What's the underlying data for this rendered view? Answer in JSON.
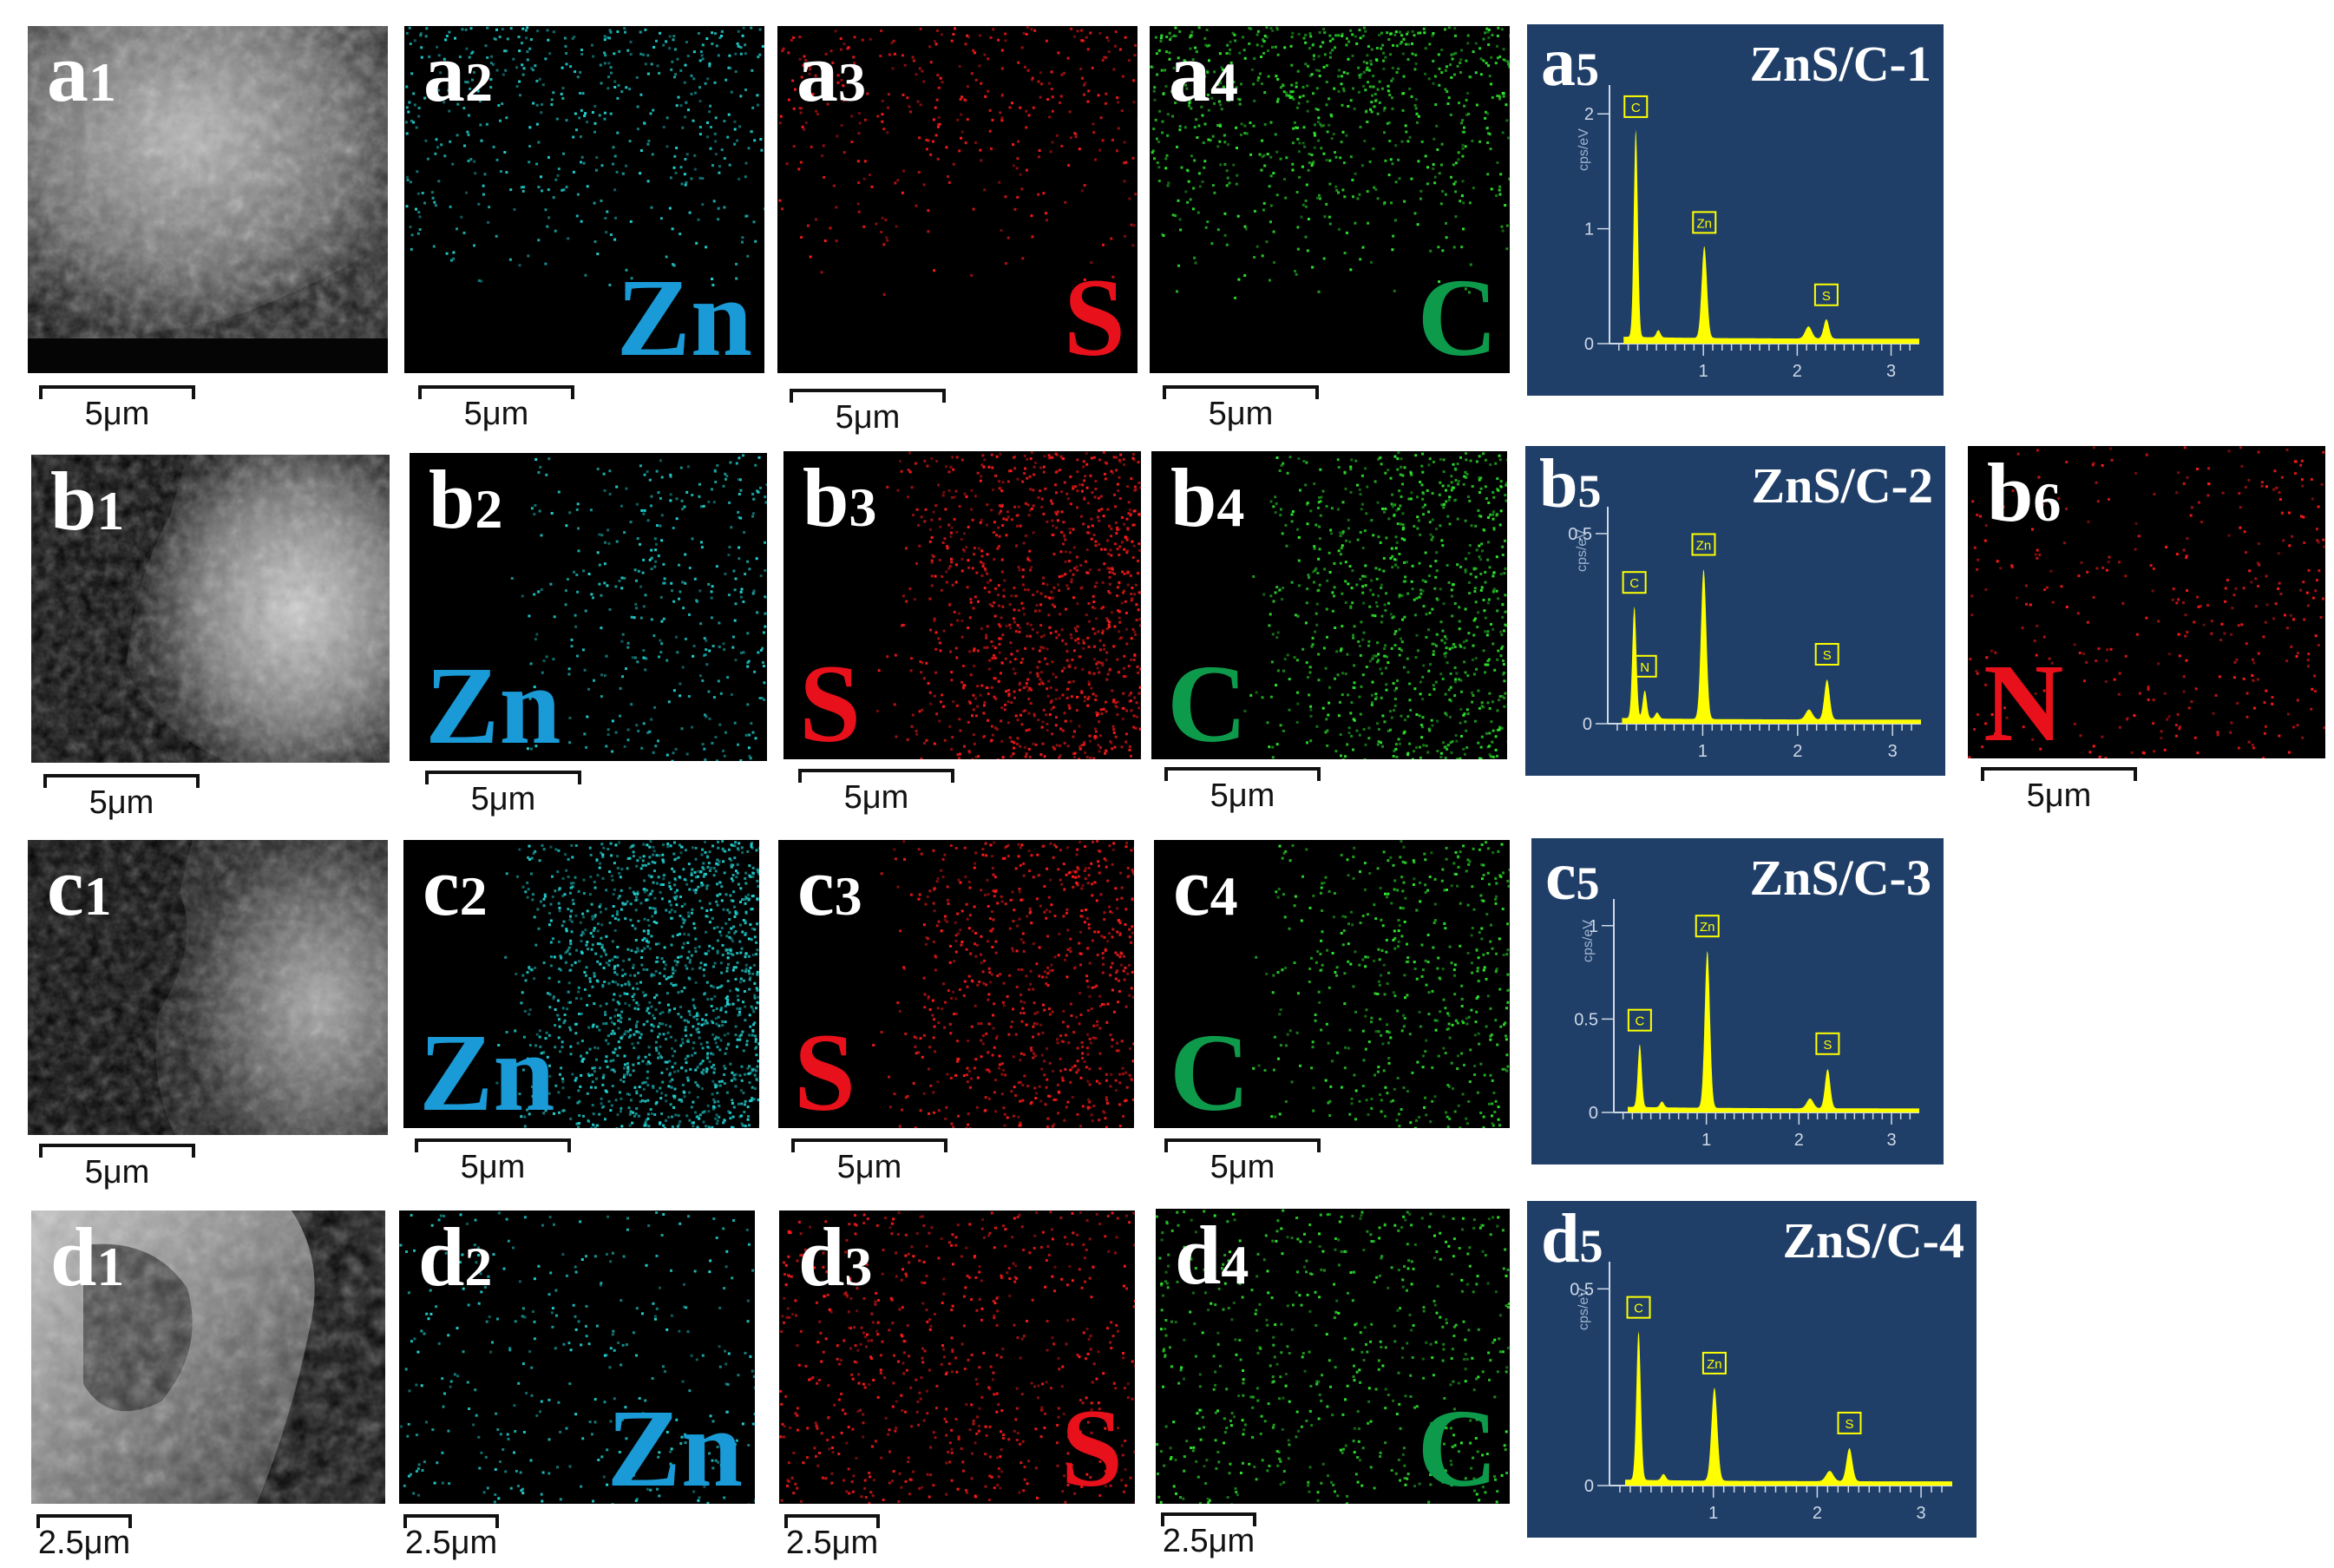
{
  "colors": {
    "Zn": "#1a9bd7",
    "S": "#e8101a",
    "C": "#0e9a4b",
    "N": "#e8101a",
    "eds_bg": "#1f3f69",
    "peak": "#ffff00"
  },
  "rows": [
    {
      "id": "a",
      "sample": "ZnS/C-1",
      "panels": [
        {
          "letter": "a",
          "num": "1",
          "scale": "5μm"
        },
        {
          "letter": "a",
          "num": "2",
          "element": "Zn",
          "scale": "5μm"
        },
        {
          "letter": "a",
          "num": "3",
          "element": "S",
          "scale": "5μm"
        },
        {
          "letter": "a",
          "num": "4",
          "element": "C",
          "scale": "5μm"
        },
        {
          "letter": "a",
          "num": "5"
        }
      ],
      "peaks": [
        "C",
        "Zn",
        "S"
      ],
      "yticks": [
        "0",
        "1",
        "2"
      ],
      "xticks": [
        "1",
        "2",
        "3"
      ]
    },
    {
      "id": "b",
      "sample": "ZnS/C-2",
      "panels": [
        {
          "letter": "b",
          "num": "1",
          "scale": "5μm"
        },
        {
          "letter": "b",
          "num": "2",
          "element": "Zn",
          "scale": "5μm"
        },
        {
          "letter": "b",
          "num": "3",
          "element": "S",
          "scale": "5μm"
        },
        {
          "letter": "b",
          "num": "4",
          "element": "C",
          "scale": "5μm"
        },
        {
          "letter": "b",
          "num": "5"
        },
        {
          "letter": "b",
          "num": "6",
          "element": "N",
          "scale": "5μm"
        }
      ],
      "peaks": [
        "C",
        "N",
        "Zn",
        "S"
      ],
      "yticks": [
        "0",
        "0.5"
      ],
      "xticks": [
        "1",
        "2",
        "3"
      ]
    },
    {
      "id": "c",
      "sample": "ZnS/C-3",
      "panels": [
        {
          "letter": "c",
          "num": "1",
          "scale": "5μm"
        },
        {
          "letter": "c",
          "num": "2",
          "element": "Zn",
          "scale": "5μm"
        },
        {
          "letter": "c",
          "num": "3",
          "element": "S",
          "scale": "5μm"
        },
        {
          "letter": "c",
          "num": "4",
          "element": "C",
          "scale": "5μm"
        },
        {
          "letter": "c",
          "num": "5"
        }
      ],
      "peaks": [
        "C",
        "Zn",
        "S"
      ],
      "yticks": [
        "0",
        "0.5",
        "1"
      ],
      "xticks": [
        "1",
        "2",
        "3"
      ]
    },
    {
      "id": "d",
      "sample": "ZnS/C-4",
      "panels": [
        {
          "letter": "d",
          "num": "1",
          "scale": "2.5μm"
        },
        {
          "letter": "d",
          "num": "2",
          "element": "Zn",
          "scale": "2.5μm"
        },
        {
          "letter": "d",
          "num": "3",
          "element": "S",
          "scale": "2.5μm"
        },
        {
          "letter": "d",
          "num": "4",
          "element": "C",
          "scale": "2.5μm"
        },
        {
          "letter": "d",
          "num": "5"
        }
      ],
      "peaks": [
        "C",
        "Zn",
        "S"
      ],
      "yticks": [
        "0",
        "0.5"
      ],
      "xticks": [
        "1",
        "2",
        "3"
      ]
    }
  ],
  "eds_y_axis": "cps/eV"
}
